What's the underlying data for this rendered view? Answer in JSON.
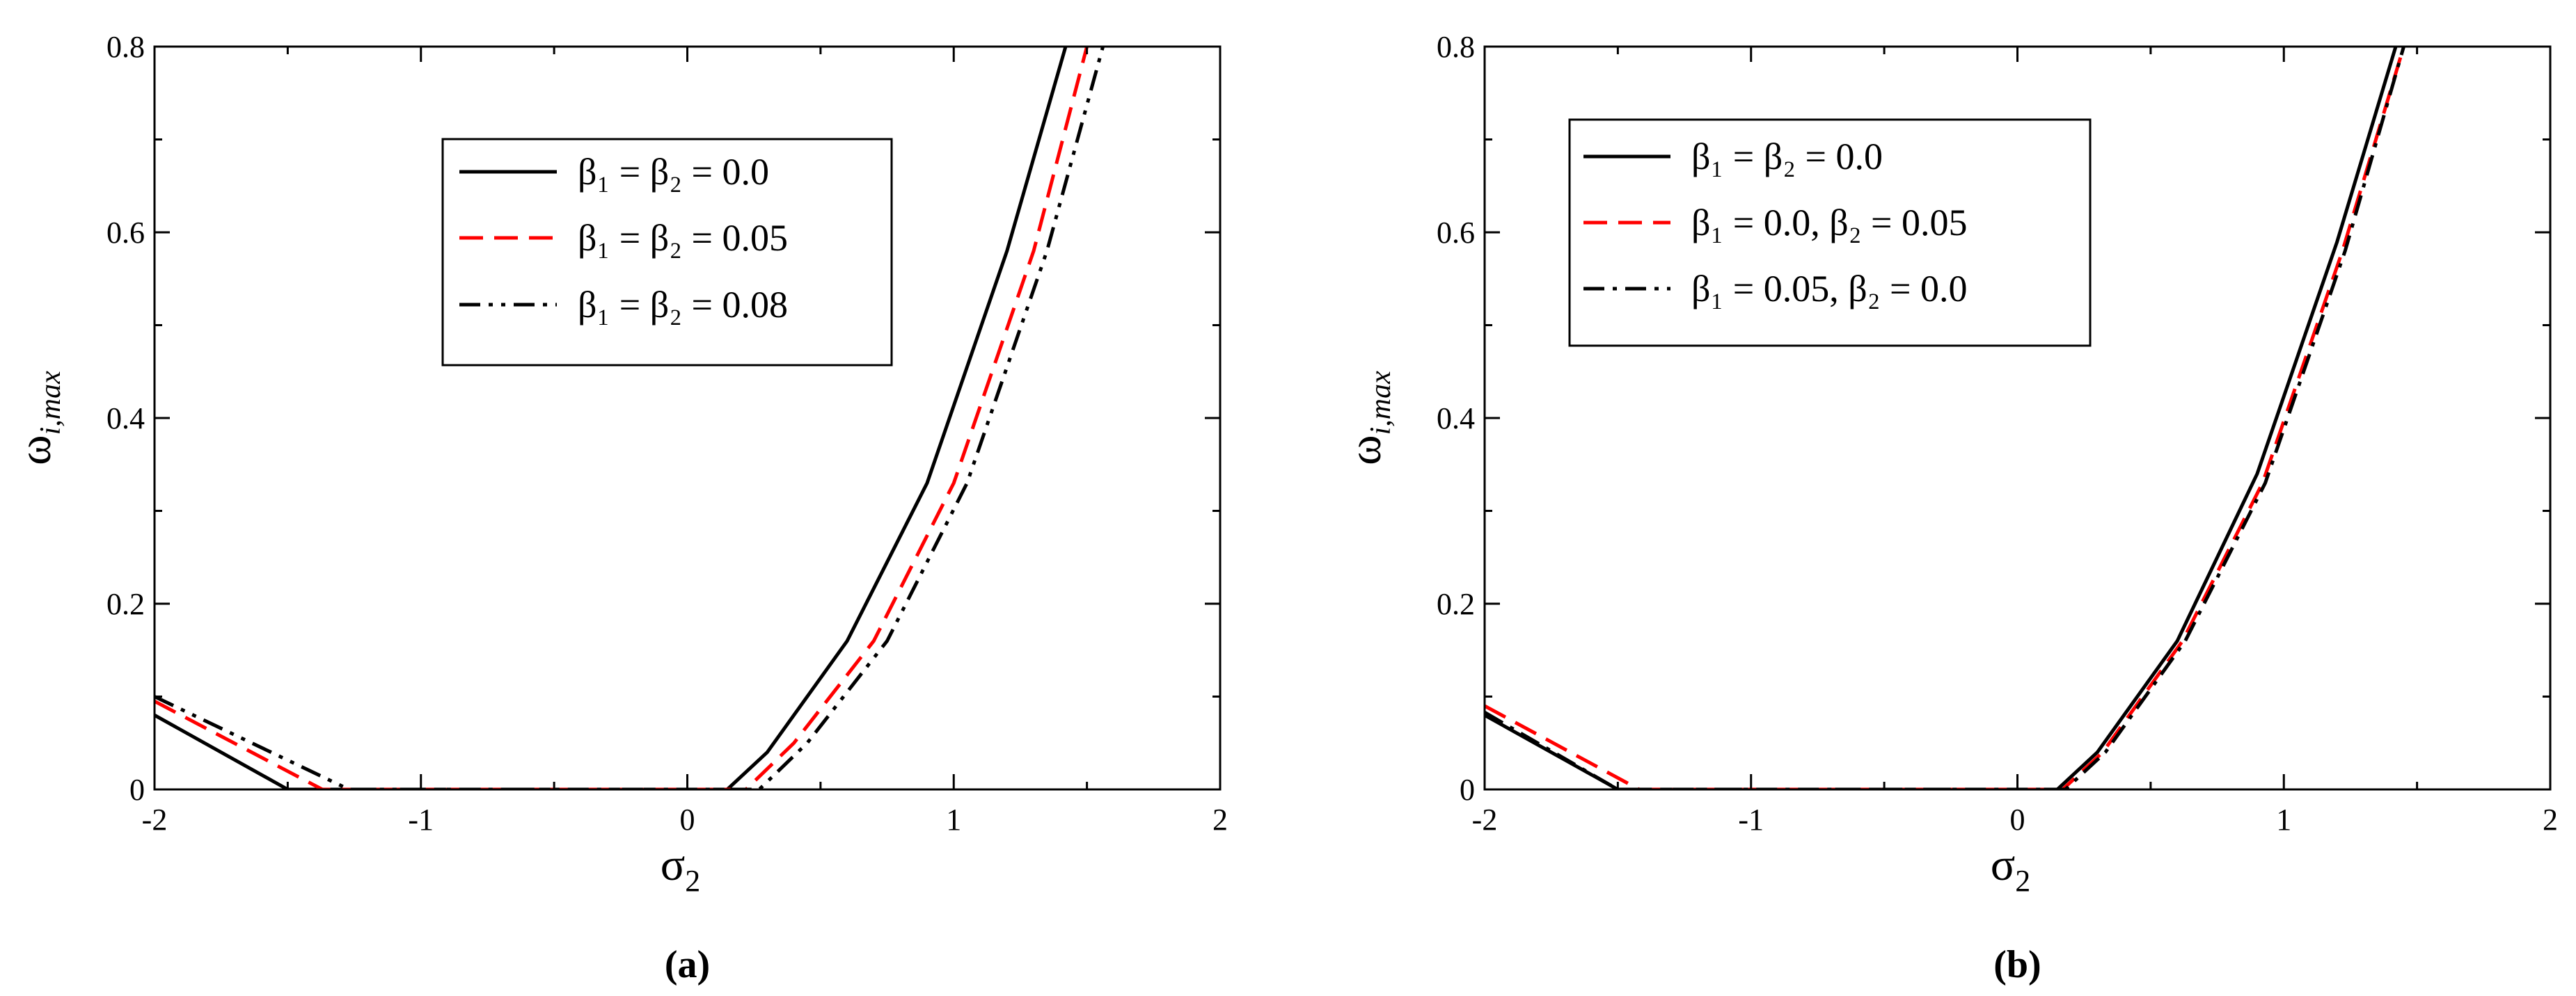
{
  "chart_data": [
    {
      "type": "line",
      "panel_label": "(a)",
      "xlabel": "σ",
      "xlabel_sub": "2",
      "ylabel": "ω",
      "ylabel_sub": "i,max",
      "xlim": [
        -2,
        2
      ],
      "ylim": [
        0,
        0.8
      ],
      "xticks": [
        -2,
        -1,
        0,
        1,
        2
      ],
      "xtick_labels": [
        "-2",
        "-1",
        "0",
        "1",
        "2"
      ],
      "yticks": [
        0,
        0.2,
        0.4,
        0.6,
        0.8
      ],
      "ytick_labels": [
        "0",
        "0.2",
        "0.4",
        "0.6",
        "0.8"
      ],
      "legend_position": "top-center",
      "series": [
        {
          "name": "β1 = β2 = 0.0",
          "legend_text": "β₁ = β₂ = 0.0",
          "color": "#000000",
          "dash": "solid",
          "x": [
            -2.0,
            -1.5,
            -1.3,
            0.0,
            0.15,
            0.3,
            0.6,
            0.9,
            1.2,
            1.42
          ],
          "y": [
            0.08,
            0.0,
            0.0,
            0.0,
            0.0,
            0.04,
            0.16,
            0.33,
            0.58,
            0.8
          ]
        },
        {
          "name": "β1 = β2 = 0.05",
          "legend_text": "β₁ = β₂  = 0.05",
          "color": "#ff0000",
          "dash": "dashed",
          "x": [
            -2.0,
            -1.37,
            -1.2,
            0.0,
            0.22,
            0.4,
            0.7,
            1.0,
            1.3,
            1.5
          ],
          "y": [
            0.095,
            0.0,
            0.0,
            0.0,
            0.0,
            0.05,
            0.16,
            0.33,
            0.58,
            0.8
          ]
        },
        {
          "name": "β1 = β2 = 0.08",
          "legend_text": "β₁ = β₂  = 0.08",
          "color": "#000000",
          "dash": "dash-dot-dot",
          "x": [
            -2.0,
            -1.27,
            -1.1,
            0.0,
            0.27,
            0.45,
            0.75,
            1.05,
            1.35,
            1.56
          ],
          "y": [
            0.1,
            0.0,
            0.0,
            0.0,
            0.0,
            0.05,
            0.16,
            0.33,
            0.58,
            0.8
          ]
        }
      ]
    },
    {
      "type": "line",
      "panel_label": "(b)",
      "xlabel": "σ",
      "xlabel_sub": "2",
      "ylabel": "ω",
      "ylabel_sub": "i,max",
      "xlim": [
        -2,
        2
      ],
      "ylim": [
        0,
        0.8
      ],
      "xticks": [
        -2,
        -1,
        0,
        1,
        2
      ],
      "xtick_labels": [
        "-2",
        "-1",
        "0",
        "1",
        "2"
      ],
      "yticks": [
        0,
        0.2,
        0.4,
        0.6,
        0.8
      ],
      "ytick_labels": [
        "0",
        "0.2",
        "0.4",
        "0.6",
        "0.8"
      ],
      "legend_position": "top-left",
      "series": [
        {
          "name": "β1 = β2 = 0.0",
          "legend_text": "β₁ = β₂ = 0.0",
          "color": "#000000",
          "dash": "solid",
          "x": [
            -2.0,
            -1.5,
            -1.3,
            0.0,
            0.15,
            0.3,
            0.6,
            0.9,
            1.2,
            1.42
          ],
          "y": [
            0.08,
            0.0,
            0.0,
            0.0,
            0.0,
            0.04,
            0.16,
            0.34,
            0.59,
            0.8
          ]
        },
        {
          "name": "β1 = 0.0, β2 = 0.05",
          "legend_text": "β₁ = 0.0, β₂  = 0.05",
          "color": "#ff0000",
          "dash": "dashed",
          "x": [
            -2.0,
            -1.42,
            -1.3,
            0.0,
            0.17,
            0.32,
            0.62,
            0.92,
            1.22,
            1.45
          ],
          "y": [
            0.09,
            0.0,
            0.0,
            0.0,
            0.0,
            0.04,
            0.16,
            0.33,
            0.58,
            0.8
          ]
        },
        {
          "name": "β1 = 0.05, β2 = 0.0",
          "legend_text": "β₁ = 0.05, β₂  = 0.0",
          "color": "#000000",
          "dash": "dash-dot",
          "x": [
            -2.0,
            -1.5,
            -1.3,
            0.0,
            0.18,
            0.33,
            0.63,
            0.93,
            1.23,
            1.45
          ],
          "y": [
            0.083,
            0.0,
            0.0,
            0.0,
            0.0,
            0.04,
            0.16,
            0.33,
            0.58,
            0.8
          ]
        }
      ]
    }
  ]
}
